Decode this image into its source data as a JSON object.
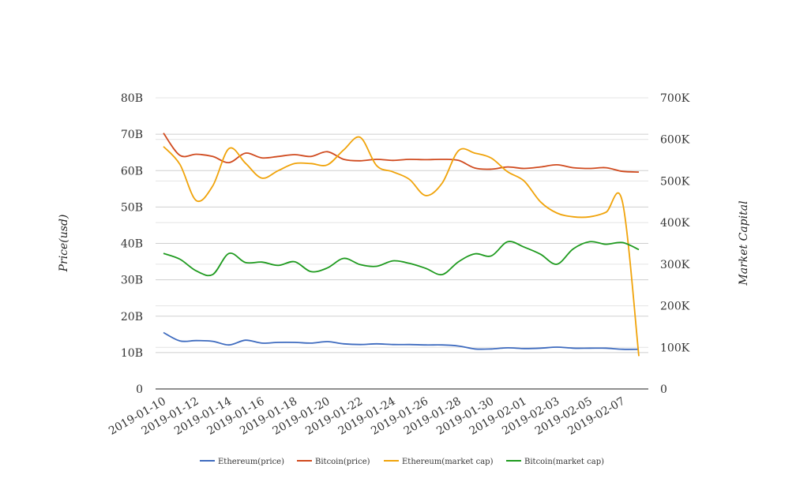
{
  "chart_data": {
    "type": "line",
    "ylabel_left": "Price(usd)",
    "ylabel_right": "Market Capital",
    "ylim_left": [
      0,
      80000000000
    ],
    "ylim_right": [
      0,
      700000
    ],
    "yticks_left": [
      "0",
      "10B",
      "20B",
      "30B",
      "40B",
      "50B",
      "60B",
      "70B",
      "80B"
    ],
    "yticks_right": [
      "0",
      "100K",
      "200K",
      "300K",
      "400K",
      "500K",
      "600K",
      "700K"
    ],
    "x": [
      "2019-01-10",
      "2019-01-11",
      "2019-01-12",
      "2019-01-13",
      "2019-01-14",
      "2019-01-15",
      "2019-01-16",
      "2019-01-17",
      "2019-01-18",
      "2019-01-19",
      "2019-01-20",
      "2019-01-21",
      "2019-01-22",
      "2019-01-23",
      "2019-01-24",
      "2019-01-25",
      "2019-01-26",
      "2019-01-27",
      "2019-01-28",
      "2019-01-29",
      "2019-01-30",
      "2019-01-31",
      "2019-02-01",
      "2019-02-02",
      "2019-02-03",
      "2019-02-04",
      "2019-02-05",
      "2019-02-06",
      "2019-02-07",
      "2019-02-08"
    ],
    "xticks": [
      "2019-01-10",
      "2019-01-12",
      "2019-01-14",
      "2019-01-16",
      "2019-01-18",
      "2019-01-20",
      "2019-01-22",
      "2019-01-24",
      "2019-01-26",
      "2019-01-28",
      "2019-01-30",
      "2019-02-01",
      "2019-02-03",
      "2019-02-05",
      "2019-02-07"
    ],
    "grid": true,
    "legend_position": "bottom",
    "series": [
      {
        "name": "Ethereum(price)",
        "axis": "left",
        "color": "#3e6bbf",
        "values": [
          15.5,
          13.2,
          13.3,
          13.1,
          12.1,
          13.4,
          12.6,
          12.8,
          12.8,
          12.6,
          13.0,
          12.4,
          12.2,
          12.4,
          12.2,
          12.2,
          12.1,
          12.1,
          11.8,
          11.0,
          11.0,
          11.3,
          11.1,
          11.2,
          11.5,
          11.2,
          11.2,
          11.2,
          10.9,
          10.9
        ]
      },
      {
        "name": "Bitcoin(price)",
        "axis": "left",
        "color": "#d04a1e",
        "values": [
          70.3,
          64.2,
          64.5,
          63.9,
          62.2,
          64.8,
          63.5,
          63.9,
          64.4,
          63.9,
          65.2,
          63.1,
          62.7,
          63.1,
          62.8,
          63.1,
          63.0,
          63.1,
          62.8,
          60.7,
          60.4,
          61.0,
          60.6,
          61.0,
          61.6,
          60.8,
          60.6,
          60.8,
          59.8,
          59.6
        ]
      },
      {
        "name": "Ethereum(market cap)",
        "axis": "right",
        "color": "#f0a30a",
        "values": [
          583000,
          540000,
          453000,
          488000,
          578000,
          543000,
          507000,
          525000,
          542000,
          542000,
          539000,
          575000,
          605000,
          537000,
          522000,
          504000,
          465000,
          495000,
          573000,
          567000,
          555000,
          522000,
          500000,
          450000,
          423000,
          414000,
          414000,
          425000,
          450000,
          79000
        ]
      },
      {
        "name": "Bitcoin(market cap)",
        "axis": "right",
        "color": "#1e9a1e",
        "values": [
          326000,
          312000,
          284000,
          275000,
          326000,
          304000,
          305000,
          297000,
          306000,
          282000,
          291000,
          314000,
          299000,
          295000,
          308000,
          302000,
          290000,
          275000,
          306000,
          325000,
          320000,
          354000,
          341000,
          324000,
          300000,
          337000,
          354000,
          348000,
          352000,
          335000
        ]
      }
    ]
  }
}
